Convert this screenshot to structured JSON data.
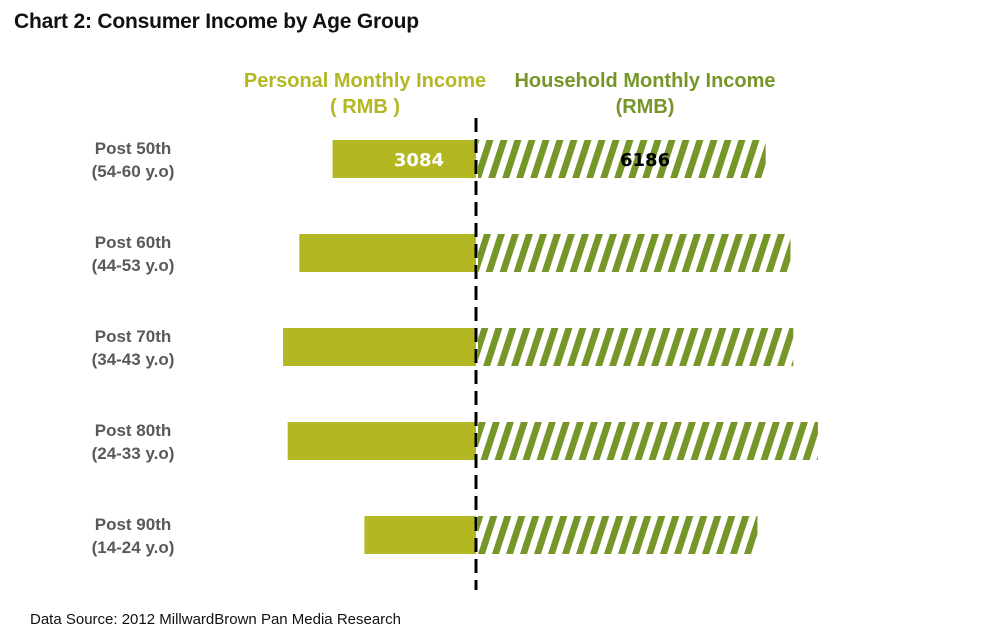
{
  "title": "Chart 2:  Consumer Income by Age Group",
  "source": "Data Source:  2012 MillwardBrown Pan Media Research",
  "colors": {
    "personal": "#B3B722",
    "household": "#77962A",
    "label_gray": "#595959"
  },
  "chart_data": {
    "type": "bar",
    "orientation": "horizontal-diverging",
    "categories": [
      {
        "name": "Post 50th",
        "sub": "(54-60 y.o)"
      },
      {
        "name": "Post 60th",
        "sub": "(44-53 y.o)"
      },
      {
        "name": "Post 70th",
        "sub": "(34-43 y.o)"
      },
      {
        "name": "Post 80th",
        "sub": "(24-33 y.o)"
      },
      {
        "name": "Post 90th",
        "sub": "(14-24 y.o)"
      }
    ],
    "series": [
      {
        "name": "Personal Monthly Income",
        "unit": "( RMB )",
        "side": "left",
        "pattern": "solid",
        "values": [
          3084,
          3800,
          4150,
          4050,
          2400
        ],
        "data_labels": [
          "3084",
          "",
          "",
          "",
          ""
        ]
      },
      {
        "name": "Household Monthly Income",
        "unit": "(RMB)",
        "side": "right",
        "pattern": "diagonal-stripes",
        "values": [
          6186,
          6720,
          6780,
          7310,
          6010
        ],
        "data_labels": [
          "6186",
          "",
          "",
          "",
          ""
        ]
      }
    ],
    "legend": "top"
  }
}
